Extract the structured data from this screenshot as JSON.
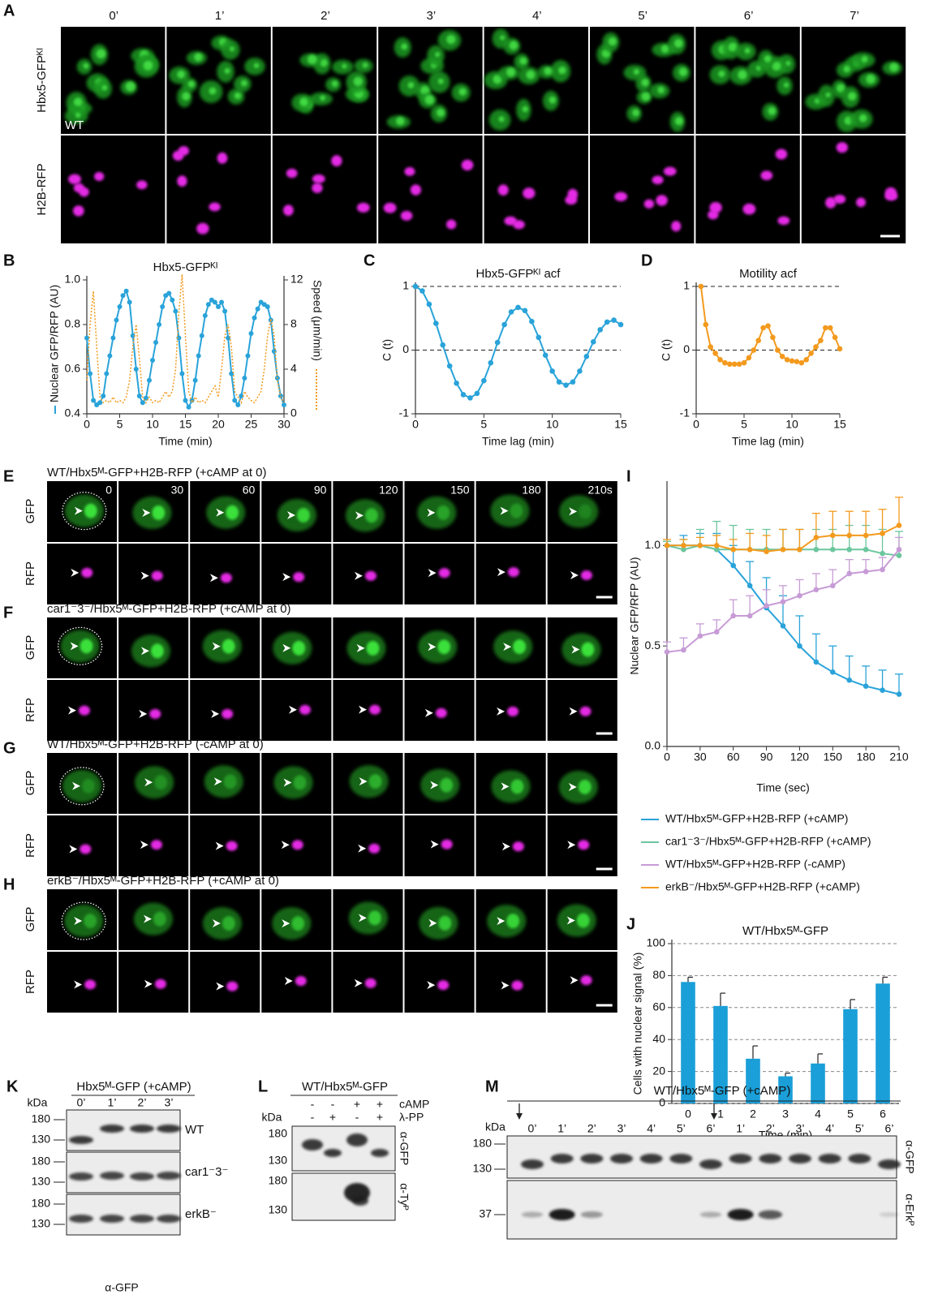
{
  "panel_labels": [
    "A",
    "B",
    "C",
    "D",
    "E",
    "F",
    "G",
    "H",
    "I",
    "J",
    "K",
    "L",
    "M"
  ],
  "panel_a": {
    "times": [
      "0’",
      "1’",
      "2’",
      "3’",
      "4’",
      "5’",
      "6’",
      "7’"
    ],
    "rows": [
      "Hbx5-GFPᴷᴵ",
      "H2B-RFP"
    ],
    "strain": "WT"
  },
  "panels_e_h": [
    {
      "title": "WT/Hbx5ᴹ-GFP+H2B-RFP  (+cAMP at 0)",
      "times": [
        "0",
        "30",
        "60",
        "90",
        "120",
        "150",
        "180",
        "210s"
      ],
      "rows": [
        "GFP",
        "RFP"
      ]
    },
    {
      "title": "car1⁻3⁻/Hbx5ᴹ-GFP+H2B-RFP  (+cAMP at 0)",
      "rows": [
        "GFP",
        "RFP"
      ]
    },
    {
      "title": "WT/Hbx5ᴹ-GFP+H2B-RFP  (-cAMP at 0)",
      "rows": [
        "GFP",
        "RFP"
      ]
    },
    {
      "title": "erkB⁻/Hbx5ᴹ-GFP+H2B-RFP  (+cAMP at 0)",
      "rows": [
        "GFP",
        "RFP"
      ]
    }
  ],
  "chart_data": [
    {
      "type": "line",
      "title": "Hbx5-GFPᴷᴵ",
      "xlabel": "Time (min)",
      "ylabel": "Nuclear GFP/RFP (AU)",
      "y2label": "Speed (μm/min)",
      "x": [
        0,
        0.5,
        1,
        1.5,
        2,
        2.5,
        3,
        3.5,
        4,
        4.5,
        5,
        5.5,
        6,
        6.5,
        7,
        7.5,
        8,
        8.5,
        9,
        9.5,
        10,
        10.5,
        11,
        11.5,
        12,
        12.5,
        13,
        13.5,
        14,
        14.5,
        15,
        15.5,
        16,
        16.5,
        17,
        17.5,
        18,
        18.5,
        19,
        19.5,
        20,
        20.5,
        21,
        21.5,
        22,
        22.5,
        23,
        23.5,
        24,
        24.5,
        25,
        25.5,
        26,
        26.5,
        27,
        27.5,
        28,
        28.5,
        29,
        29.5,
        30
      ],
      "xlim": [
        0,
        30
      ],
      "xticks": [
        0,
        5,
        10,
        15,
        20,
        25,
        30
      ],
      "ylim": [
        0.4,
        1.0
      ],
      "yticks": [
        0.4,
        0.6,
        0.8,
        {
          "value": 1.0,
          "label": "1.0"
        }
      ],
      "y2lim": [
        0,
        12
      ],
      "y2ticks": [
        0,
        4,
        8,
        12
      ],
      "series": [
        {
          "color": "#29a3d9",
          "markers": true,
          "values": [
            0.74,
            0.58,
            0.46,
            0.44,
            0.45,
            0.48,
            0.58,
            0.66,
            0.74,
            0.82,
            0.88,
            0.93,
            0.95,
            0.9,
            0.75,
            0.6,
            0.48,
            0.45,
            0.47,
            0.55,
            0.64,
            0.72,
            0.8,
            0.88,
            0.93,
            0.94,
            0.91,
            0.86,
            0.74,
            0.58,
            0.46,
            0.43,
            0.46,
            0.55,
            0.66,
            0.75,
            0.84,
            0.89,
            0.91,
            0.9,
            0.88,
            0.9,
            0.86,
            0.74,
            0.58,
            0.46,
            0.44,
            0.48,
            0.56,
            0.66,
            0.76,
            0.83,
            0.87,
            0.9,
            0.89,
            0.88,
            0.82,
            0.68,
            0.56,
            0.48,
            0.44
          ]
        },
        {
          "color": "#f39a1e",
          "dashed": true,
          "axis": "y2",
          "values": [
            3,
            8,
            11,
            6,
            1.5,
            1,
            1.2,
            1,
            1.5,
            1,
            1.2,
            1,
            1.5,
            3,
            6,
            8,
            5,
            1.5,
            1,
            1.5,
            1,
            1.2,
            1,
            1.5,
            2,
            1.5,
            2,
            4,
            9,
            12.5,
            7,
            2,
            1,
            1.5,
            1,
            1.2,
            1,
            1.5,
            2,
            2.5,
            1.5,
            4,
            7,
            8,
            6,
            2,
            1.5,
            1,
            2,
            1.5,
            1.2,
            1,
            1.5,
            2,
            4,
            7,
            8.5,
            7,
            3,
            1.5,
            1
          ]
        }
      ]
    },
    {
      "type": "line",
      "title": "Hbx5-GFPᴷᴵ acf",
      "xlabel": "Time lag (min)",
      "ylabel": "C (t)",
      "x": [
        0,
        0.5,
        1,
        1.5,
        2,
        2.5,
        3,
        3.5,
        4,
        4.5,
        5,
        5.5,
        6,
        6.5,
        7,
        7.5,
        8,
        8.5,
        9,
        9.5,
        10,
        10.5,
        11,
        11.5,
        12,
        12.5,
        13,
        13.5,
        14,
        14.5,
        15
      ],
      "xlim": [
        0,
        15
      ],
      "xticks": [
        0,
        5,
        10,
        15
      ],
      "ylim": [
        -1,
        1
      ],
      "yticks": [
        -1,
        0,
        1
      ],
      "hlines": [
        1,
        0
      ],
      "series": [
        {
          "color": "#29a3d9",
          "markers": true,
          "values": [
            1,
            0.93,
            0.72,
            0.42,
            0.08,
            -0.25,
            -0.52,
            -0.7,
            -0.75,
            -0.68,
            -0.48,
            -0.2,
            0.12,
            0.4,
            0.6,
            0.67,
            0.62,
            0.45,
            0.2,
            -0.08,
            -0.33,
            -0.5,
            -0.55,
            -0.5,
            -0.33,
            -0.1,
            0.13,
            0.32,
            0.44,
            0.47,
            0.4
          ]
        }
      ]
    },
    {
      "type": "line",
      "title": "Motility acf",
      "xlabel": "Time lag (min)",
      "ylabel": "C (t)",
      "x": [
        0.5,
        1,
        1.5,
        2,
        2.5,
        3,
        3.5,
        4,
        4.5,
        5,
        5.5,
        6,
        6.5,
        7,
        7.5,
        8,
        8.5,
        9,
        9.5,
        10,
        10.5,
        11,
        11.5,
        12,
        12.5,
        13,
        13.5,
        14,
        14.5,
        15
      ],
      "xlim": [
        0,
        15
      ],
      "xticks": [
        0,
        5,
        10,
        15
      ],
      "ylim": [
        -1,
        1
      ],
      "yticks": [
        -1,
        0,
        1
      ],
      "hlines": [
        1,
        0
      ],
      "series": [
        {
          "color": "#f39a1e",
          "markers": true,
          "values": [
            1.0,
            0.4,
            0.05,
            -0.05,
            -0.15,
            -0.2,
            -0.22,
            -0.22,
            -0.22,
            -0.2,
            -0.12,
            0.0,
            0.15,
            0.35,
            0.38,
            0.2,
            0.0,
            -0.1,
            -0.15,
            -0.17,
            -0.18,
            -0.2,
            -0.15,
            -0.05,
            0.05,
            0.15,
            0.35,
            0.35,
            0.2,
            0.02
          ]
        }
      ]
    },
    {
      "type": "line",
      "xlabel": "Time (sec)",
      "ylabel": "Nuclear GFP/RFP (AU)",
      "x": [
        0,
        15,
        30,
        45,
        60,
        75,
        90,
        105,
        120,
        135,
        150,
        165,
        180,
        195,
        210
      ],
      "xlim": [
        0,
        210
      ],
      "xticks": [
        0,
        30,
        60,
        90,
        120,
        150,
        180,
        210
      ],
      "ylim": [
        0,
        1.3
      ],
      "yticks": [
        {
          "value": 0,
          "label": "0.0"
        },
        {
          "value": 0.5,
          "label": "0.5"
        },
        {
          "value": 1,
          "label": "1.0"
        }
      ],
      "series": [
        {
          "name": "WT/Hbx5ᴹ-GFP+H2B-RFP (+cAMP)",
          "color": "#29a3d9",
          "markers": true,
          "values": [
            1.0,
            1.0,
            1.0,
            0.98,
            0.9,
            0.8,
            0.69,
            0.6,
            0.5,
            0.42,
            0.37,
            0.33,
            0.3,
            0.28,
            0.26
          ],
          "errors": [
            0.02,
            0.05,
            0.06,
            0.08,
            0.1,
            0.12,
            0.15,
            0.15,
            0.15,
            0.14,
            0.13,
            0.12,
            0.1,
            0.1,
            0.1
          ]
        },
        {
          "name": "car1⁻3⁻/Hbx5ᴹ-GFP+H2B-RFP (+cAMP)",
          "color": "#6cc69e",
          "markers": true,
          "values": [
            1.0,
            0.98,
            1.0,
            0.98,
            0.98,
            0.98,
            0.98,
            0.98,
            0.98,
            0.98,
            0.98,
            0.98,
            0.98,
            0.96,
            0.95
          ],
          "errors": [
            0.02,
            0.05,
            0.08,
            0.14,
            0.12,
            0.1,
            0.1,
            0.1,
            0.1,
            0.1,
            0.1,
            0.12,
            0.12,
            0.12,
            0.12
          ]
        },
        {
          "name": "WT/Hbx5ᴹ-GFP+H2B-RFP (-cAMP)",
          "color": "#c79bd6",
          "markers": true,
          "values": [
            0.47,
            0.48,
            0.55,
            0.57,
            0.65,
            0.65,
            0.7,
            0.72,
            0.75,
            0.78,
            0.8,
            0.86,
            0.87,
            0.88,
            0.98
          ],
          "errors": [
            0.05,
            0.06,
            0.06,
            0.06,
            0.08,
            0.1,
            0.08,
            0.08,
            0.08,
            0.08,
            0.08,
            0.07,
            0.06,
            0.06,
            0.06
          ]
        },
        {
          "name": "erkB⁻/Hbx5ᴹ-GFP+H2B-RFP (+cAMP)",
          "color": "#f39a1e",
          "markers": true,
          "values": [
            1.0,
            1.0,
            1.0,
            1.0,
            0.98,
            0.98,
            0.97,
            0.98,
            0.98,
            1.04,
            1.05,
            1.05,
            1.05,
            1.06,
            1.1
          ],
          "errors": [
            0.03,
            0.03,
            0.04,
            0.05,
            0.05,
            0.08,
            0.08,
            0.1,
            0.1,
            0.12,
            0.12,
            0.12,
            0.12,
            0.12,
            0.14
          ]
        }
      ]
    },
    {
      "type": "bar",
      "title": "WT/Hbx5ᴹ-GFP",
      "xlabel": "Time (min)",
      "ylabel": "Cells with nuclear signal (%)",
      "categories": [
        "0",
        "1",
        "2",
        "3",
        "4",
        "5",
        "6"
      ],
      "values": [
        76,
        61,
        28,
        17,
        25,
        59,
        75
      ],
      "errors": [
        3,
        8,
        8,
        2,
        6,
        6,
        4
      ],
      "color": "#1a9fd8",
      "ylim": [
        0,
        100
      ],
      "yticks": [
        0,
        20,
        40,
        60,
        80,
        100
      ],
      "grid": true
    }
  ],
  "panel_k": {
    "title": "Hbx5ᴹ-GFP (+cAMP)",
    "unit": "kDa",
    "lanes": [
      "0’",
      "1’",
      "2’",
      "3’"
    ],
    "blots": [
      {
        "label": "WT",
        "markers": [
          "180",
          "130"
        ]
      },
      {
        "label": "car1⁻3⁻",
        "markers": [
          "180",
          "130"
        ]
      },
      {
        "label": "erkB⁻",
        "markers": [
          "180",
          "130"
        ]
      }
    ],
    "antibody": "α-GFP"
  },
  "panel_l": {
    "title": "WT/Hbx5ᴹ-GFP",
    "unit": "kDa",
    "treatments": [
      {
        "name": "cAMP",
        "signs": [
          "-",
          "-",
          "+",
          "+"
        ]
      },
      {
        "name": "λ-PP",
        "signs": [
          "-",
          "+",
          "-",
          "+"
        ]
      }
    ],
    "blots": [
      {
        "antibody": "α-GFP",
        "markers": [
          "180",
          "130"
        ]
      },
      {
        "antibody": "α-Tyᴾ",
        "markers": [
          "180",
          "130"
        ]
      }
    ]
  },
  "panel_m": {
    "title": "WT/Hbx5ᴹ-GFP (+cAMP)",
    "unit": "kDa",
    "lanes": [
      "0’",
      "1’",
      "2’",
      "3’",
      "4’",
      "5’",
      "6’",
      "1’",
      "2’",
      "3’",
      "4’",
      "5’",
      "6’"
    ],
    "blots": [
      {
        "antibody": "α-GFP",
        "markers": [
          "180",
          "130"
        ]
      },
      {
        "antibody": "α-Erkᴾ",
        "markers": [
          "37"
        ]
      }
    ]
  }
}
